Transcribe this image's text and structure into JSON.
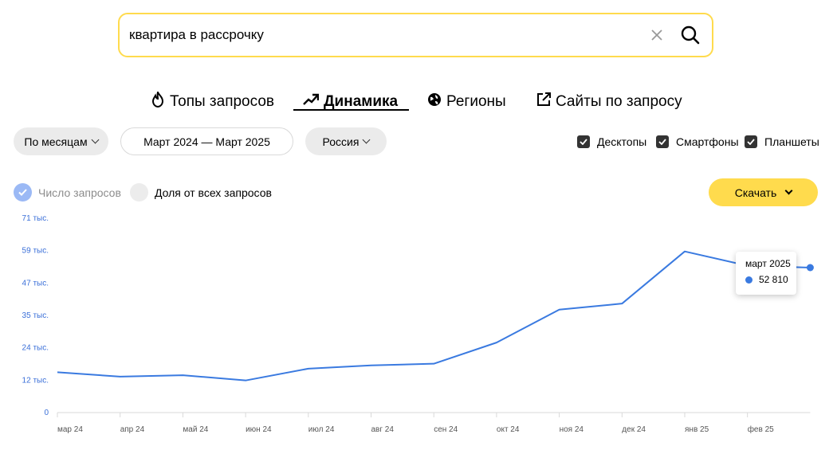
{
  "search": {
    "value": "квартира в рассрочку"
  },
  "tabs": [
    {
      "label": "Топы запросов",
      "icon": "fire-icon"
    },
    {
      "label": "Динамика",
      "icon": "trend-up-icon"
    },
    {
      "label": "Регионы",
      "icon": "globe-icon"
    },
    {
      "label": "Сайты по запросу",
      "icon": "external-link-icon"
    }
  ],
  "filters": {
    "period_group": "По месяцам",
    "date_range": "Март 2024 — Март 2025",
    "region": "Россия"
  },
  "devices": [
    {
      "label": "Десктопы",
      "checked": true
    },
    {
      "label": "Смартфоны",
      "checked": true
    },
    {
      "label": "Планшеты",
      "checked": true
    }
  ],
  "metrics": {
    "count_label": "Число запросов",
    "share_label": "Доля от всех запросов"
  },
  "download_label": "Скачать",
  "tooltip": {
    "date": "март 2025",
    "value": "52 810"
  },
  "colors": {
    "accent": "#ffdb4d",
    "line": "#3a7ae0",
    "axis_text": "#3a6fd8"
  },
  "chart_data": {
    "type": "line",
    "y_tick_labels": [
      "0",
      "12 тыс.",
      "24 тыс.",
      "35 тыс.",
      "47 тыс.",
      "59 тыс.",
      "71 тыс."
    ],
    "y_tick_values": [
      0,
      11800,
      23600,
      35400,
      47200,
      59000,
      70800
    ],
    "ylim": [
      0,
      70800
    ],
    "categories": [
      "мар 24",
      "апр 24",
      "май 24",
      "июн 24",
      "июл 24",
      "авг 24",
      "сен 24",
      "окт 24",
      "ноя 24",
      "дек 24",
      "янв 25",
      "фев 25",
      "мар 25"
    ],
    "x_tick_labels": [
      "мар 24",
      "апр 24",
      "май 24",
      "июн 24",
      "июл 24",
      "авг 24",
      "сен 24",
      "окт 24",
      "ноя 24",
      "дек 24",
      "янв 25",
      "фев 25"
    ],
    "series": [
      {
        "values": [
          14700,
          13100,
          13600,
          11700,
          16000,
          17200,
          17800,
          25500,
          37500,
          39700,
          58700,
          53500,
          52810
        ]
      }
    ],
    "grid": false
  }
}
